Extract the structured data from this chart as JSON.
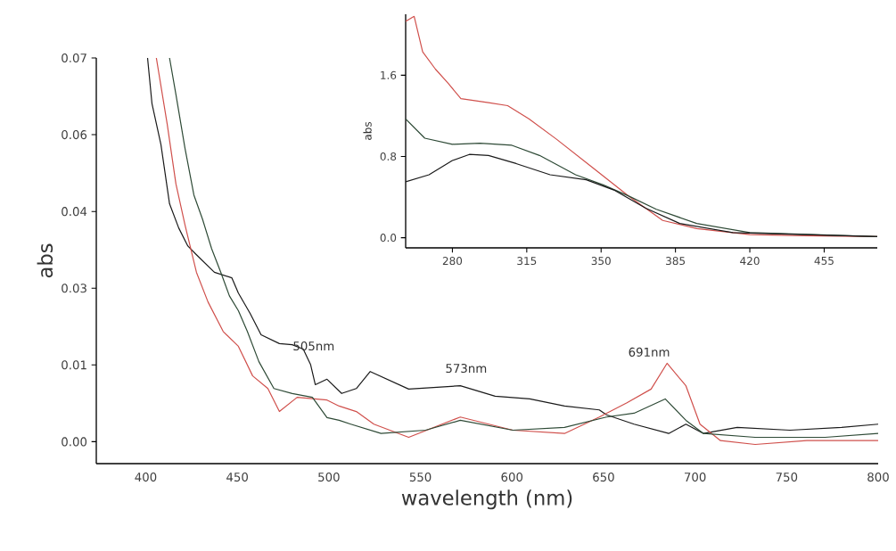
{
  "chart_data": [
    {
      "type": "line",
      "xlabel": "wavelength (nm)",
      "ylabel": "abs",
      "marker": "none",
      "xlim": [
        373,
        800
      ],
      "ylim": [
        -0.004,
        0.07
      ],
      "xticks": [
        400,
        450,
        500,
        550,
        600,
        650,
        700,
        750,
        800
      ],
      "yticks": [
        {
          "value": 0,
          "label": "0.00"
        },
        {
          "value": 0.014,
          "label": "0.01"
        },
        {
          "value": 0.028,
          "label": "0.03"
        },
        {
          "value": 0.042,
          "label": "0.04"
        },
        {
          "value": 0.056,
          "label": "0.06"
        },
        {
          "value": 0.07,
          "label": "0.07"
        }
      ],
      "series": [
        {
          "color": "#1a1a1a",
          "x": [
            401,
            403.4,
            408.3,
            409.7,
            413,
            418,
            423,
            427.7,
            437.5,
            447,
            450.6,
            457,
            463,
            473,
            480,
            486,
            490,
            492.6,
            499,
            507,
            515,
            522.6,
            543.6,
            571.8,
            590.8,
            609.7,
            628.7,
            647.7,
            651.6,
            666.7,
            685.6,
            695,
            704.6,
            723,
            751.8,
            780,
            800
          ],
          "values": [
            0.07,
            0.0617,
            0.0542,
            0.051,
            0.0434,
            0.039,
            0.0357,
            0.0341,
            0.0309,
            0.0299,
            0.0271,
            0.0234,
            0.0195,
            0.0179,
            0.0177,
            0.0169,
            0.0141,
            0.0104,
            0.0114,
            0.0088,
            0.0097,
            0.0128,
            0.0096,
            0.0102,
            0.0083,
            0.0078,
            0.0065,
            0.0058,
            0.0049,
            0.0032,
            0.0015,
            0.0032,
            0.0015,
            0.0026,
            0.0021,
            0.0026,
            0.0032
          ]
        },
        {
          "color": "#d0504c",
          "x": [
            405.8,
            411.7,
            416.5,
            421.4,
            427.7,
            434,
            442.3,
            450.6,
            458.4,
            466.7,
            473,
            482.7,
            499,
            505.6,
            515,
            524.6,
            543.6,
            571.8,
            600.5,
            628.7,
            647.7,
            662.8,
            676,
            684.7,
            695,
            702.7,
            713.9,
            732.8,
            761,
            800
          ],
          "values": [
            0.07,
            0.058,
            0.047,
            0.0396,
            0.0309,
            0.0255,
            0.0201,
            0.0174,
            0.012,
            0.0097,
            0.0055,
            0.0081,
            0.0076,
            0.0065,
            0.0055,
            0.0032,
            0.0008,
            0.0045,
            0.0021,
            0.0015,
            0.0045,
            0.0071,
            0.0096,
            0.0143,
            0.0102,
            0.0032,
            0.0002,
            -0.0005,
            0.0002,
            0.0002
          ]
        },
        {
          "color": "#2e4a36",
          "x": [
            413,
            416.5,
            421.4,
            426.3,
            431,
            436,
            441,
            445.7,
            450.6,
            455.5,
            461.8,
            470,
            480,
            491,
            499,
            505.6,
            512,
            528.5,
            552.8,
            571.8,
            600.5,
            628.7,
            651.6,
            666.7,
            683.7,
            695,
            704.6,
            732.8,
            771,
            800
          ],
          "values": [
            0.07,
            0.0633,
            0.0536,
            0.045,
            0.0406,
            0.0352,
            0.0309,
            0.0266,
            0.0239,
            0.0201,
            0.0146,
            0.0097,
            0.0088,
            0.0081,
            0.0044,
            0.0039,
            0.0032,
            0.0015,
            0.0021,
            0.0039,
            0.0021,
            0.0026,
            0.0045,
            0.0052,
            0.0078,
            0.0039,
            0.0015,
            0.0008,
            0.0008,
            0.0015
          ]
        }
      ],
      "annotations": [
        "505nm",
        "573nm",
        "691nm"
      ]
    },
    {
      "type": "line",
      "ylabel": "abs",
      "marker": "none",
      "xlim": [
        258,
        480
      ],
      "ylim": [
        -0.1,
        2.2
      ],
      "xticks": [
        280,
        315,
        350,
        385,
        420,
        455
      ],
      "yticks": [
        {
          "value": 0,
          "label": "0.0"
        },
        {
          "value": 0.8,
          "label": "0.8"
        },
        {
          "value": 1.6,
          "label": "1.6"
        }
      ],
      "series": [
        {
          "color": "#d0504c",
          "x": [
            258,
            262,
            266,
            272,
            278,
            284,
            297,
            306,
            316,
            329,
            346,
            363,
            379,
            395,
            420,
            445,
            480
          ],
          "values": [
            2.13,
            2.18,
            1.83,
            1.66,
            1.52,
            1.37,
            1.33,
            1.3,
            1.17,
            0.97,
            0.69,
            0.41,
            0.17,
            0.09,
            0.03,
            0.02,
            0.01
          ]
        },
        {
          "color": "#2e4a36",
          "x": [
            258,
            267,
            280,
            293,
            308,
            321,
            338,
            351,
            363,
            376,
            395,
            420,
            480
          ],
          "values": [
            1.17,
            0.98,
            0.92,
            0.93,
            0.91,
            0.81,
            0.62,
            0.52,
            0.41,
            0.28,
            0.14,
            0.05,
            0.01
          ]
        },
        {
          "color": "#1a1a1a",
          "x": [
            258,
            269,
            280,
            288,
            297,
            310,
            326,
            343,
            356,
            371,
            387,
            412,
            480
          ],
          "values": [
            0.55,
            0.62,
            0.76,
            0.82,
            0.81,
            0.73,
            0.62,
            0.57,
            0.47,
            0.29,
            0.14,
            0.05,
            0.01
          ]
        }
      ]
    }
  ]
}
